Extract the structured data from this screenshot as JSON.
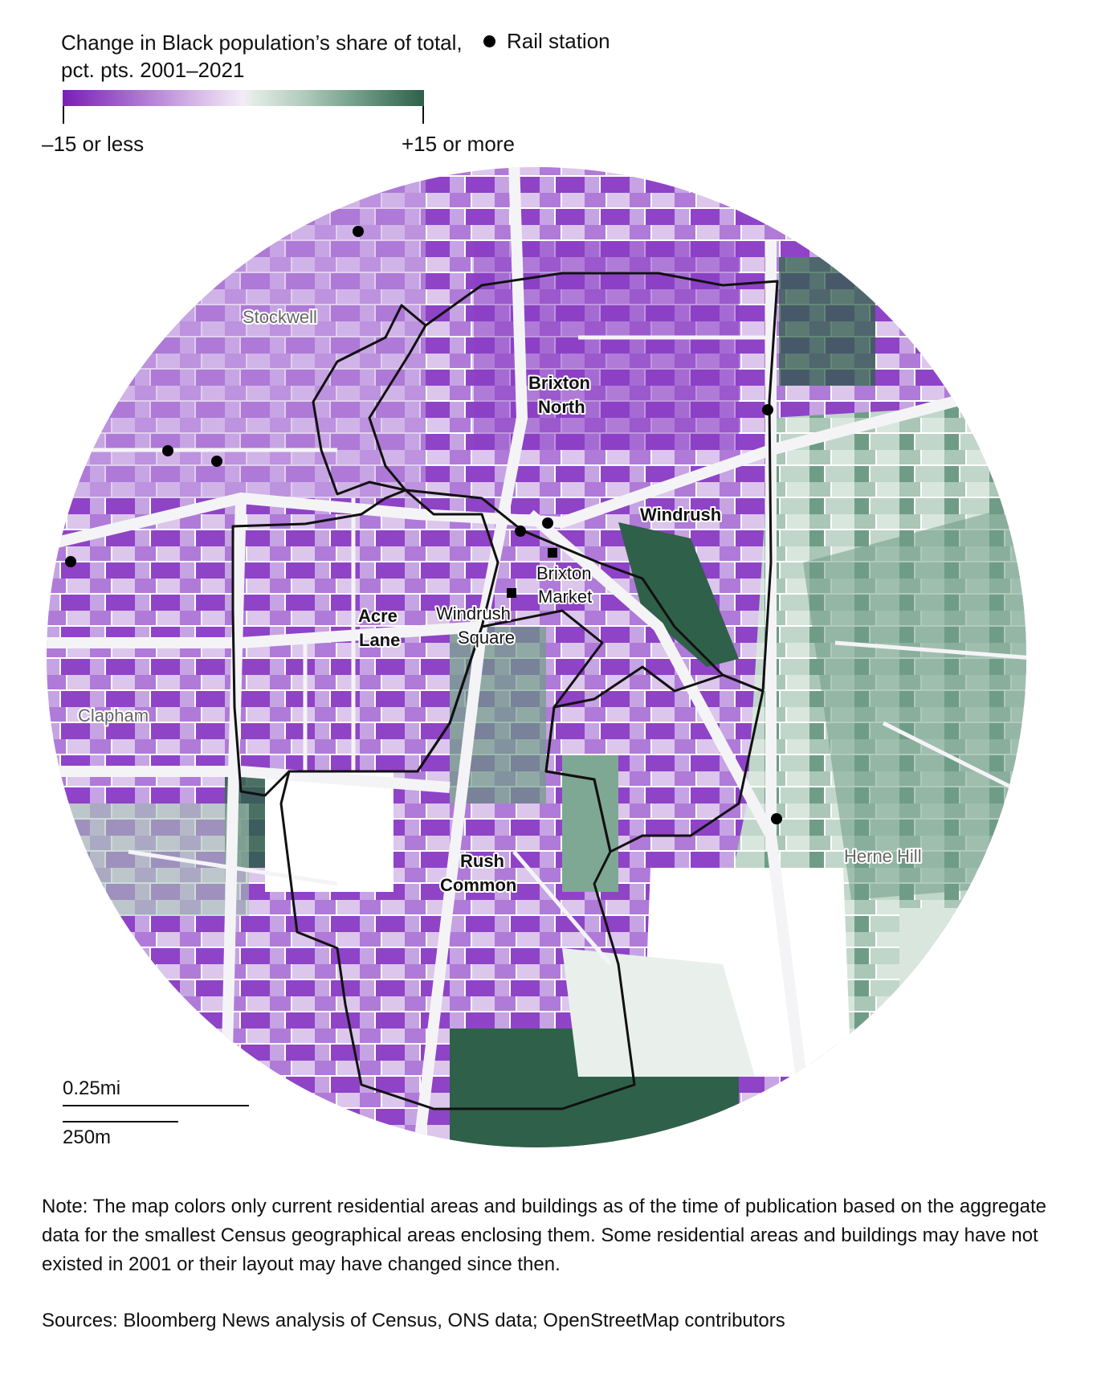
{
  "legend": {
    "title": "Change in Black population’s share of total, pct. pts. 2001–2021",
    "min_label": "–15 or less",
    "max_label": "+15 or more",
    "rail_station_label": "Rail station",
    "scale_colors": [
      "#7a1fb5",
      "#a467cf",
      "#d4b4e6",
      "#f3ecf7",
      "#e4ede8",
      "#b4cdbf",
      "#6f9c86",
      "#2f604a"
    ]
  },
  "labels": {
    "stockwell": "Stockwell",
    "clapham": "Clapham",
    "herne_hill": "Herne Hill",
    "brixton_north_1": "Brixton",
    "brixton_north_2": "North",
    "windrush": "Windrush",
    "acre_lane_1": "Acre",
    "acre_lane_2": "Lane",
    "rush_common_1": "Rush",
    "rush_common_2": "Common",
    "brixton_market_1": "Brixton",
    "brixton_market_2": "Market",
    "windrush_square_1": "Windrush",
    "windrush_square_2": "Square"
  },
  "scale": {
    "miles": "0.25mi",
    "meters": "250m"
  },
  "note": "Note: The map colors only current residential areas and buildings as of the time of publication based on the aggregate data for the smallest Census geographical areas enclosing them. Some residential areas and buildings may have not existed in 2001 or their layout may have changed since then.",
  "sources": "Sources: Bloomberg News analysis of Census, ONS data; OpenStreetMap contributors"
}
